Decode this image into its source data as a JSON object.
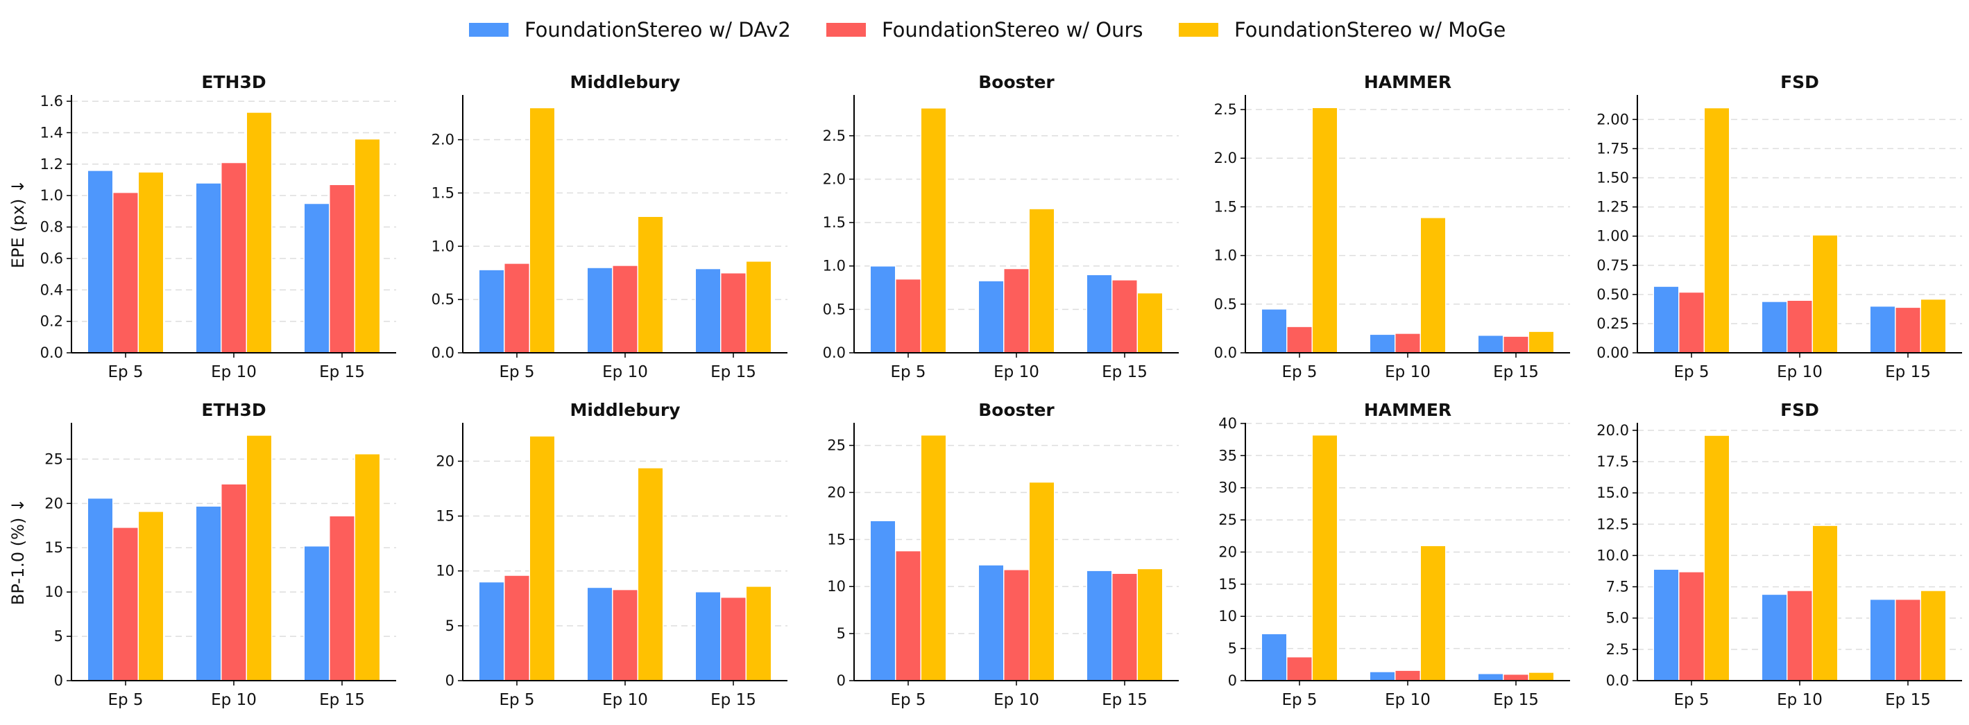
{
  "legend": [
    {
      "label": "FoundationStereo w/ DAv2",
      "color": "#4e97fc"
    },
    {
      "label": "FoundationStereo w/ Ours",
      "color": "#fd5e5b"
    },
    {
      "label": "FoundationStereo w/ MoGe",
      "color": "#ffc101"
    }
  ],
  "row_labels": [
    "EPE (px) ↓",
    "BP-1.0 (%) ↓"
  ],
  "chart_data": [
    {
      "type": "bar",
      "title": "ETH3D",
      "row": 0,
      "col": 0,
      "categories": [
        "Ep 5",
        "Ep 10",
        "Ep 15"
      ],
      "series": [
        {
          "name": "FoundationStereo w/ DAv2",
          "values": [
            1.16,
            1.08,
            0.95
          ]
        },
        {
          "name": "FoundationStereo w/ Ours",
          "values": [
            1.02,
            1.21,
            1.07
          ]
        },
        {
          "name": "FoundationStereo w/ MoGe",
          "values": [
            1.15,
            1.53,
            1.36
          ]
        }
      ],
      "ylabel": "EPE (px) ↓",
      "ylim": [
        0,
        1.64
      ],
      "yticks": [
        0.0,
        0.2,
        0.4,
        0.6,
        0.8,
        1.0,
        1.2,
        1.4,
        1.6
      ],
      "ytick_labels": [
        "0.0",
        "0.2",
        "0.4",
        "0.6",
        "0.8",
        "1.0",
        "1.2",
        "1.4",
        "1.6"
      ]
    },
    {
      "type": "bar",
      "title": "Middlebury",
      "row": 0,
      "col": 1,
      "categories": [
        "Ep 5",
        "Ep 10",
        "Ep 15"
      ],
      "series": [
        {
          "name": "FoundationStereo w/ DAv2",
          "values": [
            0.78,
            0.8,
            0.79
          ]
        },
        {
          "name": "FoundationStereo w/ Ours",
          "values": [
            0.84,
            0.82,
            0.75
          ]
        },
        {
          "name": "FoundationStereo w/ MoGe",
          "values": [
            2.3,
            1.28,
            0.86
          ]
        }
      ],
      "ylabel": "",
      "ylim": [
        0,
        2.42
      ],
      "yticks": [
        0.0,
        0.5,
        1.0,
        1.5,
        2.0
      ],
      "ytick_labels": [
        "0.0",
        "0.5",
        "1.0",
        "1.5",
        "2.0"
      ]
    },
    {
      "type": "bar",
      "title": "Booster",
      "row": 0,
      "col": 2,
      "categories": [
        "Ep 5",
        "Ep 10",
        "Ep 15"
      ],
      "series": [
        {
          "name": "FoundationStereo w/ DAv2",
          "values": [
            1.0,
            0.83,
            0.9
          ]
        },
        {
          "name": "FoundationStereo w/ Ours",
          "values": [
            0.85,
            0.97,
            0.84
          ]
        },
        {
          "name": "FoundationStereo w/ MoGe",
          "values": [
            2.82,
            1.66,
            0.69
          ]
        }
      ],
      "ylabel": "",
      "ylim": [
        0,
        2.97
      ],
      "yticks": [
        0.0,
        0.5,
        1.0,
        1.5,
        2.0,
        2.5
      ],
      "ytick_labels": [
        "0.0",
        "0.5",
        "1.0",
        "1.5",
        "2.0",
        "2.5"
      ]
    },
    {
      "type": "bar",
      "title": "HAMMER",
      "row": 0,
      "col": 3,
      "categories": [
        "Ep 5",
        "Ep 10",
        "Ep 15"
      ],
      "series": [
        {
          "name": "FoundationStereo w/ DAv2",
          "values": [
            0.45,
            0.19,
            0.18
          ]
        },
        {
          "name": "FoundationStereo w/ Ours",
          "values": [
            0.27,
            0.2,
            0.17
          ]
        },
        {
          "name": "FoundationStereo w/ MoGe",
          "values": [
            2.52,
            1.39,
            0.22
          ]
        }
      ],
      "ylabel": "",
      "ylim": [
        0,
        2.65
      ],
      "yticks": [
        0.0,
        0.5,
        1.0,
        1.5,
        2.0,
        2.5
      ],
      "ytick_labels": [
        "0.0",
        "0.5",
        "1.0",
        "1.5",
        "2.0",
        "2.5"
      ]
    },
    {
      "type": "bar",
      "title": "FSD",
      "row": 0,
      "col": 4,
      "categories": [
        "Ep 5",
        "Ep 10",
        "Ep 15"
      ],
      "series": [
        {
          "name": "FoundationStereo w/ DAv2",
          "values": [
            0.57,
            0.44,
            0.4
          ]
        },
        {
          "name": "FoundationStereo w/ Ours",
          "values": [
            0.52,
            0.45,
            0.39
          ]
        },
        {
          "name": "FoundationStereo w/ MoGe",
          "values": [
            2.1,
            1.01,
            0.46
          ]
        }
      ],
      "ylabel": "",
      "ylim": [
        0,
        2.21
      ],
      "yticks": [
        0.0,
        0.25,
        0.5,
        0.75,
        1.0,
        1.25,
        1.5,
        1.75,
        2.0
      ],
      "ytick_labels": [
        "0.00",
        "0.25",
        "0.50",
        "0.75",
        "1.00",
        "1.25",
        "1.50",
        "1.75",
        "2.00"
      ]
    },
    {
      "type": "bar",
      "title": "ETH3D",
      "row": 1,
      "col": 0,
      "categories": [
        "Ep 5",
        "Ep 10",
        "Ep 15"
      ],
      "series": [
        {
          "name": "FoundationStereo w/ DAv2",
          "values": [
            20.6,
            19.7,
            15.2
          ]
        },
        {
          "name": "FoundationStereo w/ Ours",
          "values": [
            17.3,
            22.2,
            18.6
          ]
        },
        {
          "name": "FoundationStereo w/ MoGe",
          "values": [
            19.1,
            27.7,
            25.6
          ]
        }
      ],
      "ylabel": "BP-1.0 (%) ↓",
      "ylim": [
        0,
        29.1
      ],
      "yticks": [
        0,
        5,
        10,
        15,
        20,
        25
      ],
      "ytick_labels": [
        "0",
        "5",
        "10",
        "15",
        "20",
        "25"
      ]
    },
    {
      "type": "bar",
      "title": "Middlebury",
      "row": 1,
      "col": 1,
      "categories": [
        "Ep 5",
        "Ep 10",
        "Ep 15"
      ],
      "series": [
        {
          "name": "FoundationStereo w/ DAv2",
          "values": [
            9.0,
            8.5,
            8.1
          ]
        },
        {
          "name": "FoundationStereo w/ Ours",
          "values": [
            9.6,
            8.3,
            7.6
          ]
        },
        {
          "name": "FoundationStereo w/ MoGe",
          "values": [
            22.3,
            19.4,
            8.6
          ]
        }
      ],
      "ylabel": "",
      "ylim": [
        0,
        23.5
      ],
      "yticks": [
        0,
        5,
        10,
        15,
        20
      ],
      "ytick_labels": [
        "0",
        "5",
        "10",
        "15",
        "20"
      ]
    },
    {
      "type": "bar",
      "title": "Booster",
      "row": 1,
      "col": 2,
      "categories": [
        "Ep 5",
        "Ep 10",
        "Ep 15"
      ],
      "series": [
        {
          "name": "FoundationStereo w/ DAv2",
          "values": [
            17.0,
            12.3,
            11.7
          ]
        },
        {
          "name": "FoundationStereo w/ Ours",
          "values": [
            13.8,
            11.8,
            11.4
          ]
        },
        {
          "name": "FoundationStereo w/ MoGe",
          "values": [
            26.1,
            21.1,
            11.9
          ]
        }
      ],
      "ylabel": "",
      "ylim": [
        0,
        27.4
      ],
      "yticks": [
        0,
        5,
        10,
        15,
        20,
        25
      ],
      "ytick_labels": [
        "0",
        "5",
        "10",
        "15",
        "20",
        "25"
      ]
    },
    {
      "type": "bar",
      "title": "HAMMER",
      "row": 1,
      "col": 3,
      "categories": [
        "Ep 5",
        "Ep 10",
        "Ep 15"
      ],
      "series": [
        {
          "name": "FoundationStereo w/ DAv2",
          "values": [
            7.3,
            1.4,
            1.1
          ]
        },
        {
          "name": "FoundationStereo w/ Ours",
          "values": [
            3.7,
            1.6,
            1.0
          ]
        },
        {
          "name": "FoundationStereo w/ MoGe",
          "values": [
            38.2,
            21.0,
            1.3
          ]
        }
      ],
      "ylabel": "",
      "ylim": [
        0,
        40.1
      ],
      "yticks": [
        0,
        5,
        10,
        15,
        20,
        25,
        30,
        35,
        40
      ],
      "ytick_labels": [
        "0",
        "5",
        "10",
        "15",
        "20",
        "25",
        "30",
        "35",
        "40"
      ]
    },
    {
      "type": "bar",
      "title": "FSD",
      "row": 1,
      "col": 4,
      "categories": [
        "Ep 5",
        "Ep 10",
        "Ep 15"
      ],
      "series": [
        {
          "name": "FoundationStereo w/ DAv2",
          "values": [
            8.9,
            6.9,
            6.5
          ]
        },
        {
          "name": "FoundationStereo w/ Ours",
          "values": [
            8.7,
            7.2,
            6.5
          ]
        },
        {
          "name": "FoundationStereo w/ MoGe",
          "values": [
            19.6,
            12.4,
            7.2
          ]
        }
      ],
      "ylabel": "",
      "ylim": [
        0,
        20.6
      ],
      "yticks": [
        0,
        2.5,
        5,
        7.5,
        10,
        12.5,
        15,
        17.5,
        20
      ],
      "ytick_labels": [
        "0.0",
        "2.5",
        "5.0",
        "7.5",
        "10.0",
        "12.5",
        "15.0",
        "17.5",
        "20.0"
      ]
    }
  ]
}
